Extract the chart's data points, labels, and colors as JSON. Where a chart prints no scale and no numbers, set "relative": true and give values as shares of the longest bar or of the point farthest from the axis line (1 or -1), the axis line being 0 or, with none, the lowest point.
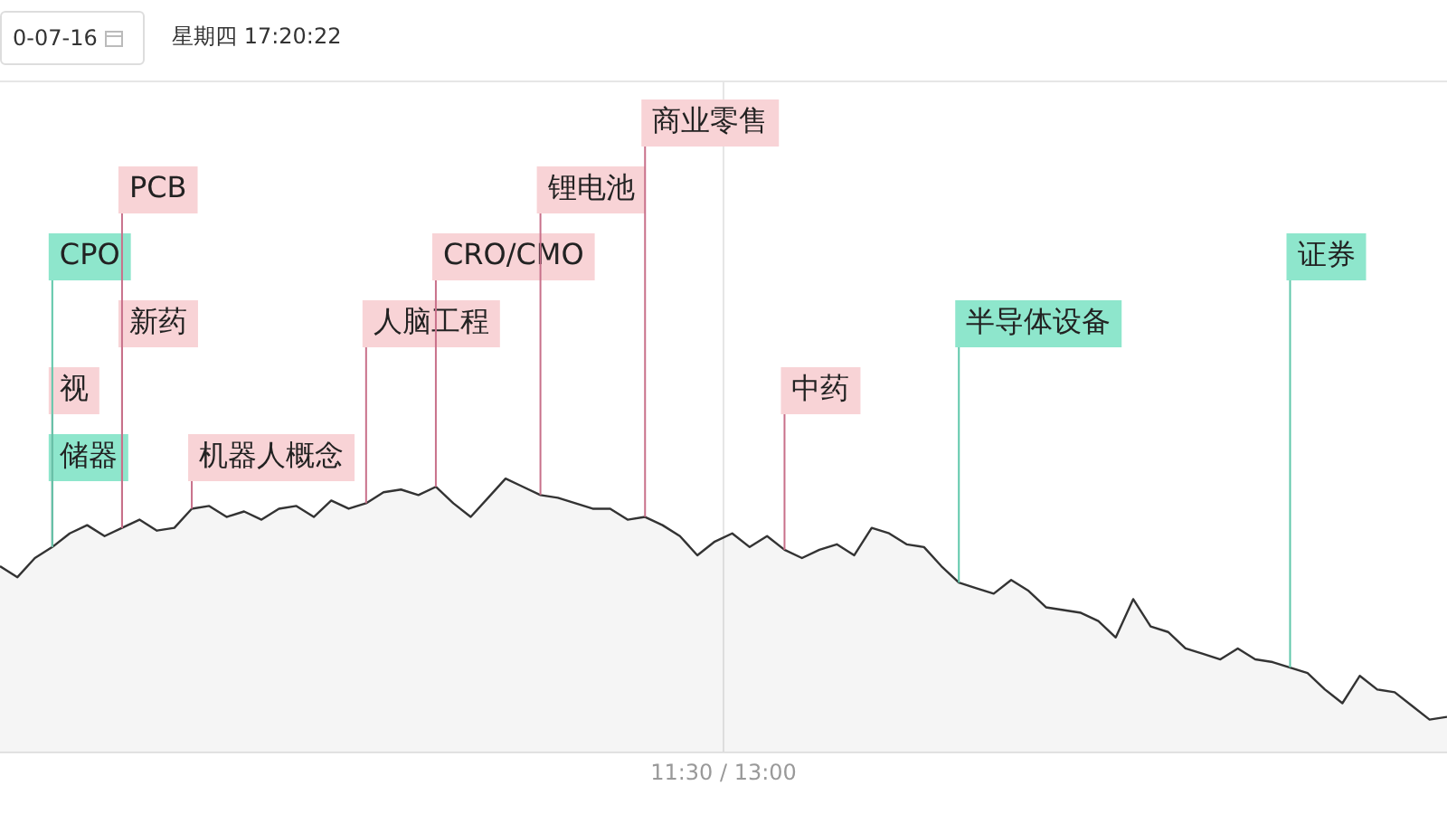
{
  "chart_data": {
    "type": "area",
    "relative": true,
    "annotations": [
      "0-07-16",
      "星期四 17:20:22",
      "11:30 / 13:00",
      "储器",
      "视",
      "新药",
      "CPO",
      "PCB",
      "机器人概念",
      "人脑工程",
      "CRO/CMO",
      "锂电池",
      "商业零售",
      "中药",
      "半导体设备",
      "证券"
    ],
    "categories": [
      null,
      null,
      null,
      null,
      null,
      null,
      null,
      null,
      null,
      null,
      null,
      null,
      null,
      null,
      null,
      null,
      null,
      null,
      null,
      null,
      null,
      null,
      null,
      null,
      null,
      null,
      null,
      null,
      null,
      null,
      null,
      null,
      null,
      null,
      null,
      null,
      null,
      null,
      null,
      null,
      null,
      null,
      null,
      null,
      null,
      null,
      null,
      null,
      null,
      null,
      null,
      null,
      null,
      null,
      null,
      null,
      null,
      null,
      null,
      null,
      null,
      null,
      null,
      null,
      null,
      null,
      null,
      null,
      null,
      null,
      null,
      null,
      null,
      null,
      null,
      null,
      null,
      null,
      null,
      null,
      null,
      null,
      null,
      null
    ],
    "series": [
      {
        "color": "#333333",
        "values": [
          0.68,
          0.64,
          0.71,
          0.75,
          0.8,
          0.83,
          0.79,
          0.82,
          0.85,
          0.81,
          0.82,
          0.89,
          0.9,
          0.86,
          0.88,
          0.85,
          0.89,
          0.9,
          0.86,
          0.92,
          0.89,
          0.91,
          0.95,
          0.96,
          0.94,
          0.97,
          0.91,
          0.86,
          0.93,
          1,
          0.97,
          0.94,
          0.93,
          0.91,
          0.89,
          0.89,
          0.85,
          0.86,
          0.83,
          0.79,
          0.72,
          0.77,
          0.8,
          0.75,
          0.79,
          0.74,
          0.71,
          0.74,
          0.76,
          0.72,
          0.82,
          0.8,
          0.76,
          0.75,
          0.68,
          0.62,
          0.6,
          0.58,
          0.63,
          0.59,
          0.53,
          0.52,
          0.51,
          0.48,
          0.42,
          0.56,
          0.46,
          0.44,
          0.38,
          0.36,
          0.34,
          0.38,
          0.34,
          0.33,
          0.31,
          0.29,
          0.23,
          0.18,
          0.28,
          0.23,
          0.22,
          0.17,
          0.12,
          0.13
        ]
      }
    ],
    "grid": "x",
    "marker": "none",
    "legend": false
  }
}
